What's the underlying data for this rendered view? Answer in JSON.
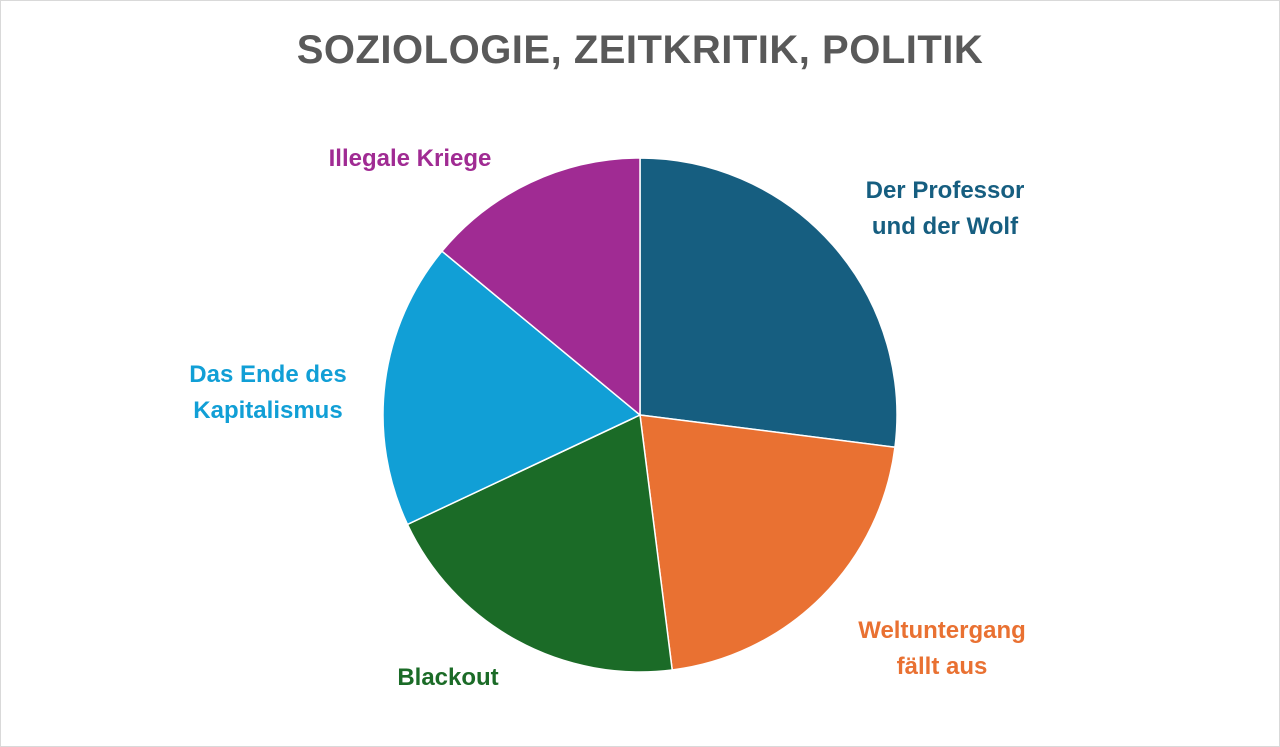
{
  "chart_data": {
    "type": "pie",
    "title": "SOZIOLOGIE, ZEITKRITIK, POLITIK",
    "slices": [
      {
        "label": [
          "Der Professor",
          "und der Wolf"
        ],
        "value": 27,
        "color": "#165E80"
      },
      {
        "label": [
          "Weltuntergang",
          "fällt aus"
        ],
        "value": 21,
        "color": "#E97132"
      },
      {
        "label": [
          "Blackout"
        ],
        "value": 20,
        "color": "#1B6B27"
      },
      {
        "label": [
          "Das Ende des",
          "Kapitalismus"
        ],
        "value": 18,
        "color": "#119FD6"
      },
      {
        "label": [
          "Illegale Kriege"
        ],
        "value": 14,
        "color": "#A02B93"
      }
    ],
    "start_angle_deg": 0,
    "direction": "clockwise",
    "legend": "none"
  }
}
